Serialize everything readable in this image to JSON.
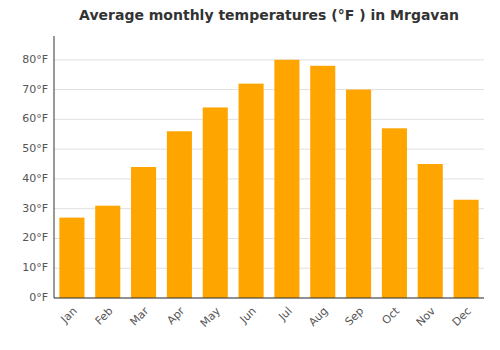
{
  "chart_data": {
    "type": "bar",
    "title": "Average monthly temperatures (°F ) in Mrgavan",
    "categories": [
      "Jan",
      "Feb",
      "Mar",
      "Apr",
      "May",
      "Jun",
      "Jul",
      "Aug",
      "Sep",
      "Oct",
      "Nov",
      "Dec"
    ],
    "values": [
      27,
      31,
      44,
      56,
      64,
      72,
      80,
      78,
      70,
      57,
      45,
      33
    ],
    "color": "#FFA500",
    "ylim": [
      0,
      88
    ],
    "yticks": [
      {
        "value": 0,
        "label": "0°F"
      },
      {
        "value": 10,
        "label": "10°F"
      },
      {
        "value": 20,
        "label": "20°F"
      },
      {
        "value": 30,
        "label": "30°F"
      },
      {
        "value": 40,
        "label": "40°F"
      },
      {
        "value": 50,
        "label": "50°F"
      },
      {
        "value": 60,
        "label": "60°F"
      },
      {
        "value": 70,
        "label": "70°F"
      },
      {
        "value": 80,
        "label": "80°F"
      }
    ],
    "grid": true
  }
}
